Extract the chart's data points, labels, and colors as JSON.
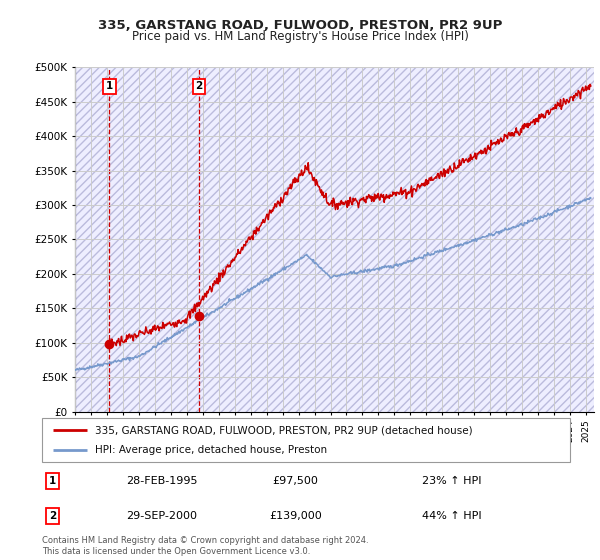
{
  "title1": "335, GARSTANG ROAD, FULWOOD, PRESTON, PR2 9UP",
  "title2": "Price paid vs. HM Land Registry's House Price Index (HPI)",
  "ylabel_ticks": [
    "£0",
    "£50K",
    "£100K",
    "£150K",
    "£200K",
    "£250K",
    "£300K",
    "£350K",
    "£400K",
    "£450K",
    "£500K"
  ],
  "ylim": [
    0,
    500000
  ],
  "xlim_start": 1993.0,
  "xlim_end": 2025.5,
  "sale1_date": 1995.16,
  "sale1_price": 97500,
  "sale2_date": 2000.75,
  "sale2_price": 139000,
  "legend_line1": "335, GARSTANG ROAD, FULWOOD, PRESTON, PR2 9UP (detached house)",
  "legend_line2": "HPI: Average price, detached house, Preston",
  "annotation1_label": "1",
  "annotation1_date": "28-FEB-1995",
  "annotation1_price": "£97,500",
  "annotation1_hpi": "23% ↑ HPI",
  "annotation2_label": "2",
  "annotation2_date": "29-SEP-2000",
  "annotation2_price": "£139,000",
  "annotation2_hpi": "44% ↑ HPI",
  "copyright_text": "Contains HM Land Registry data © Crown copyright and database right 2024.\nThis data is licensed under the Open Government Licence v3.0.",
  "line_color_red": "#cc0000",
  "line_color_blue": "#7799cc",
  "bg_color": "#ffffff",
  "plot_bg": "#eeeeff",
  "grid_color": "#cccccc"
}
